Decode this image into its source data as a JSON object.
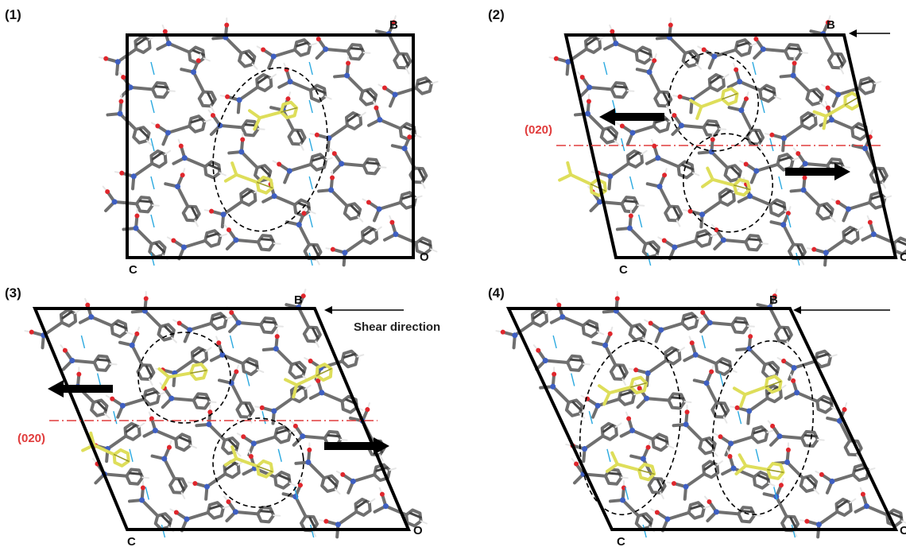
{
  "panels": [
    {
      "label": "(1)",
      "vertex_b": "B",
      "vertex_c": "C",
      "vertex_o": "O"
    },
    {
      "label": "(2)",
      "vertex_b": "B",
      "vertex_c": "C",
      "vertex_o": "O",
      "plane_label": "(020)"
    },
    {
      "label": "(3)",
      "vertex_b": "B",
      "vertex_c": "C",
      "vertex_o": "O",
      "plane_label": "(020)",
      "shear_label": "Shear direction"
    },
    {
      "label": "(4)",
      "vertex_b": "B",
      "vertex_c": "C",
      "vertex_o": "O"
    }
  ],
  "colors": {
    "carbon": "#6f6f6f",
    "hydrogen": "#e6e6e6",
    "nitrogen": "#3e5fc2",
    "oxygen": "#e0262c",
    "hydrogen_bond": "#2aa9e0",
    "highlight": "#dede5a",
    "plane": "#e03b3b"
  }
}
